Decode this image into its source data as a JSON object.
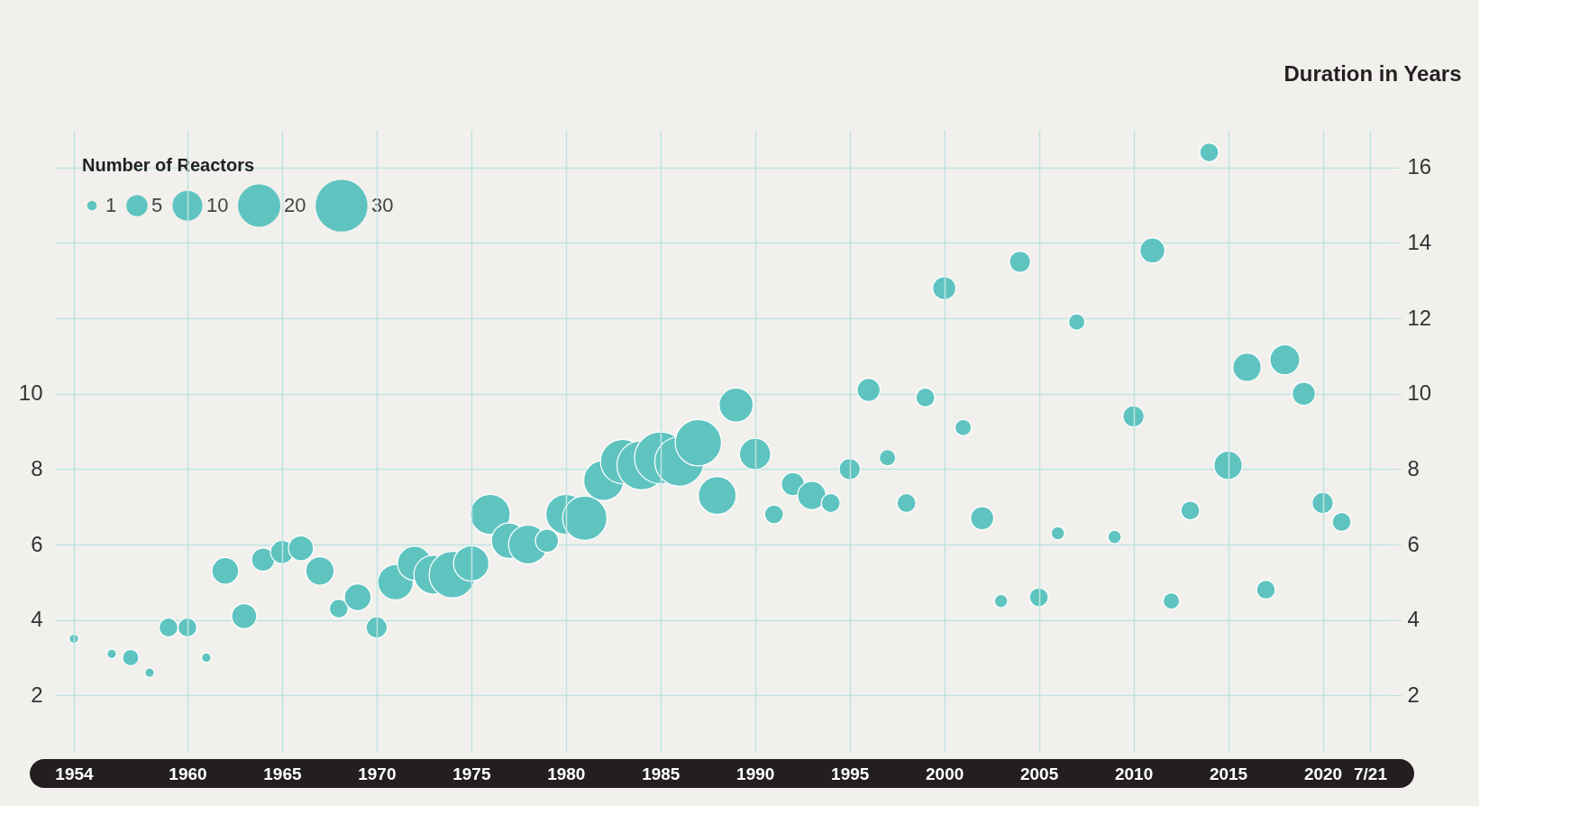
{
  "chart_data": {
    "type": "bubble",
    "y2label": "Duration in Years",
    "legend_title": "Number of Reactors",
    "grid": true,
    "color": "#5fc4c0",
    "x": [
      1954,
      1956,
      1957,
      1958,
      1959,
      1960,
      1961,
      1962,
      1963,
      1964,
      1965,
      1966,
      1967,
      1968,
      1969,
      1970,
      1971,
      1972,
      1973,
      1974,
      1975,
      1976,
      1977,
      1978,
      1979,
      1980,
      1981,
      1982,
      1983,
      1984,
      1985,
      1986,
      1987,
      1988,
      1989,
      1990,
      1991,
      1992,
      1993,
      1994,
      1995,
      1996,
      1997,
      1998,
      1999,
      2000,
      2001,
      2002,
      2003,
      2004,
      2005,
      2006,
      2007,
      2009,
      2010,
      2011,
      2012,
      2013,
      2014,
      2015,
      2016,
      2017,
      2018,
      2019,
      2020,
      2021
    ],
    "values": [
      3.5,
      3.1,
      3.0,
      2.6,
      3.8,
      3.8,
      3.0,
      5.3,
      4.1,
      5.6,
      5.8,
      5.9,
      5.3,
      4.3,
      4.6,
      3.8,
      5.0,
      5.5,
      5.2,
      5.2,
      5.5,
      6.8,
      6.1,
      6.0,
      6.1,
      6.8,
      6.7,
      7.7,
      8.2,
      8.1,
      8.3,
      8.2,
      8.7,
      7.3,
      9.7,
      8.4,
      6.8,
      7.6,
      7.3,
      7.1,
      8.0,
      10.1,
      8.3,
      7.1,
      9.9,
      12.8,
      9.1,
      6.7,
      4.5,
      13.5,
      4.6,
      6.3,
      11.9,
      6.2,
      9.4,
      13.8,
      4.5,
      6.9,
      16.4,
      8.1,
      10.7,
      4.8,
      10.9,
      10.0,
      7.1,
      6.6
    ],
    "sizes": [
      1,
      1,
      3,
      1,
      4,
      4,
      1,
      8,
      7,
      6,
      6,
      7,
      9,
      4,
      8,
      5,
      14,
      13,
      17,
      24,
      14,
      18,
      14,
      17,
      6,
      18,
      22,
      18,
      22,
      27,
      30,
      27,
      24,
      16,
      13,
      11,
      4,
      6,
      9,
      4,
      5,
      6,
      3,
      4,
      4,
      6,
      3,
      6,
      2,
      5,
      4,
      2,
      3,
      2,
      5,
      7,
      3,
      4,
      4,
      9,
      9,
      4,
      10,
      6,
      5,
      4
    ],
    "size_legend": [
      1,
      5,
      10,
      20,
      30
    ],
    "xlim": [
      1953,
      2023.5
    ],
    "xticks": [
      1954,
      1960,
      1965,
      1970,
      1975,
      1980,
      1985,
      1990,
      1995,
      2000,
      2005,
      2010,
      2015,
      2020,
      {
        "value": 2022.5,
        "label": "7/21"
      }
    ],
    "ylim": [
      0.5,
      17
    ],
    "yticks": [
      2,
      4,
      6,
      8,
      10
    ],
    "y2lim": [
      0.5,
      17
    ],
    "y2ticks": [
      2,
      4,
      6,
      8,
      10,
      12,
      14,
      16
    ]
  }
}
